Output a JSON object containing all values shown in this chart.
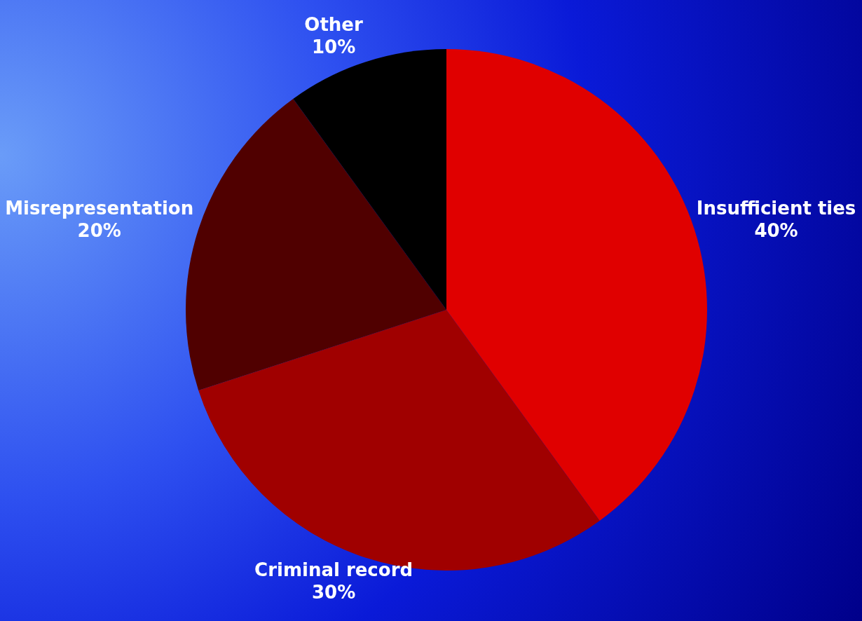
{
  "chart_data": {
    "type": "pie",
    "categories": [
      "Insufficient ties",
      "Criminal record",
      "Misrepresentation",
      "Other"
    ],
    "values": [
      40,
      30,
      20,
      10
    ],
    "colors": [
      "#e00000",
      "#a00000",
      "#500000",
      "#000000"
    ],
    "value_labels": [
      "40%",
      "30%",
      "20%",
      "10%"
    ],
    "legend": false
  }
}
